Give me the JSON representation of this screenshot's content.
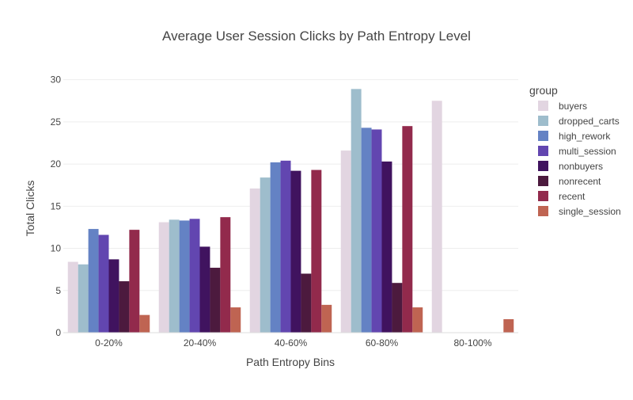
{
  "chart_data": {
    "type": "bar",
    "title": "Average User Session Clicks by Path Entropy Level",
    "xlabel": "Path Entropy Bins",
    "ylabel": "Total Clicks",
    "categories": [
      "0-20%",
      "20-40%",
      "40-60%",
      "60-80%",
      "80-100%"
    ],
    "ylim": [
      0,
      31
    ],
    "yticks": [
      0,
      5,
      10,
      15,
      20,
      25,
      30
    ],
    "grid": true,
    "legend": {
      "title": "group",
      "position": "right"
    },
    "series": [
      {
        "name": "buyers",
        "color": "#e2d5e1",
        "values": [
          8.4,
          13.1,
          17.1,
          21.6,
          27.5
        ]
      },
      {
        "name": "dropped_carts",
        "color": "#9ebdcc",
        "values": [
          8.1,
          13.4,
          18.4,
          28.9,
          0
        ]
      },
      {
        "name": "high_rework",
        "color": "#6482c4",
        "values": [
          12.3,
          13.3,
          20.2,
          24.3,
          0
        ]
      },
      {
        "name": "multi_session",
        "color": "#6246b0",
        "values": [
          11.6,
          13.5,
          20.4,
          24.1,
          0
        ]
      },
      {
        "name": "nonbuyers",
        "color": "#40135f",
        "values": [
          8.7,
          10.2,
          19.2,
          20.3,
          0
        ]
      },
      {
        "name": "nonrecent",
        "color": "#4c1a3e",
        "values": [
          6.1,
          7.7,
          7.0,
          5.9,
          0
        ]
      },
      {
        "name": "recent",
        "color": "#922a4c",
        "values": [
          12.2,
          13.7,
          19.3,
          24.5,
          0
        ]
      },
      {
        "name": "single_session",
        "color": "#bf6452",
        "values": [
          2.1,
          3.0,
          3.3,
          3.0,
          1.6
        ]
      }
    ]
  }
}
